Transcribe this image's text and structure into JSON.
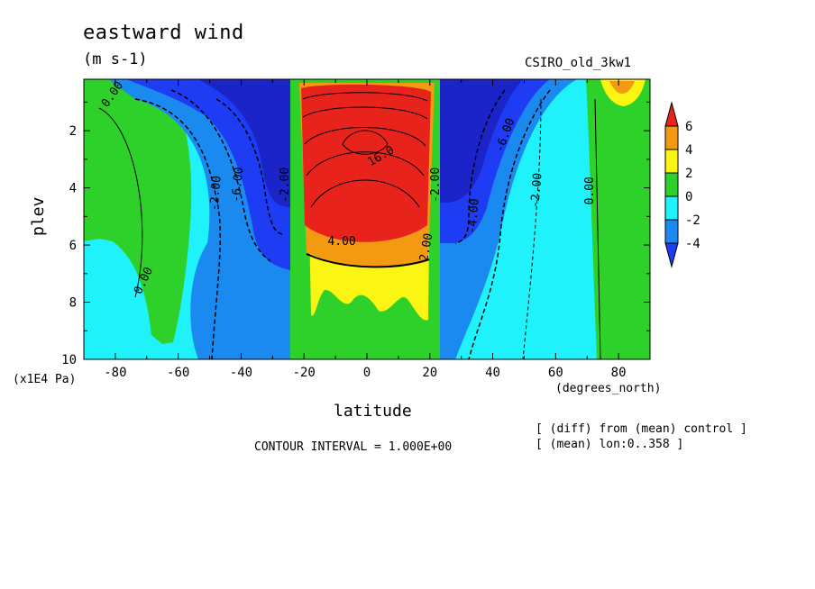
{
  "chart_data": {
    "type": "heatmap",
    "title": "eastward wind",
    "subtitle": "(m s-1)",
    "model": "CSIRO_old_3kw1",
    "xlabel": "latitude",
    "ylabel": "plev",
    "x_unit_label": "(degrees_north)",
    "y_unit_label": "(x1E4 Pa)",
    "xlim": [
      -90,
      90
    ],
    "ylim": [
      10,
      0.2
    ],
    "x_ticks": [
      -80,
      -60,
      -40,
      -20,
      0,
      20,
      40,
      60,
      80
    ],
    "y_ticks": [
      2,
      4,
      6,
      8,
      10
    ],
    "contour_interval_text": "CONTOUR INTERVAL = 1.000E+00",
    "notes": [
      "[ (diff) from (mean) control ]",
      "[ (mean) lon:0..358 ]"
    ],
    "colorbar": {
      "levels": [
        6,
        4,
        2,
        0,
        -2,
        -4
      ],
      "colors": [
        "#e8231c",
        "#f39a12",
        "#fbf514",
        "#2ed12a",
        "#1ff2fb",
        "#1b8af0",
        "#1f3cf5"
      ]
    },
    "contour_labels": [
      {
        "text": "0.00",
        "lat": -80,
        "p": 0.8,
        "angle": -55
      },
      {
        "text": "0.00",
        "lat": -70,
        "p": 7.3,
        "angle": -65
      },
      {
        "text": "-2.00",
        "lat": -47,
        "p": 4.2,
        "angle": -85
      },
      {
        "text": "-6.00",
        "lat": -40,
        "p": 3.9,
        "angle": -85
      },
      {
        "text": "-2.00",
        "lat": -25,
        "p": 3.9,
        "angle": -90
      },
      {
        "text": "-4.00",
        "lat": 35,
        "p": 5.0,
        "angle": -85
      },
      {
        "text": "-6.00",
        "lat": 45,
        "p": 2.2,
        "angle": -70
      },
      {
        "text": "-2.00",
        "lat": 55,
        "p": 4.1,
        "angle": -85
      },
      {
        "text": "0.00",
        "lat": 72,
        "p": 4.1,
        "angle": -90
      },
      {
        "text": "-2.00",
        "lat": 23,
        "p": 3.9,
        "angle": -90
      },
      {
        "text": "2.00",
        "lat": 20,
        "p": 6.1,
        "angle": -80
      },
      {
        "text": "4.00",
        "lat": -8,
        "p": 6.0,
        "angle": 0
      },
      {
        "text": "16.0",
        "lat": 5,
        "p": 3.0,
        "angle": -30
      }
    ],
    "regions": [
      {
        "label": "westerly jet core (red)",
        "lat_range": [
          -20,
          21
        ],
        "p_range": [
          0.2,
          7.5
        ],
        "max": 18
      },
      {
        "label": "southern easterly max (blue)",
        "lat_range": [
          -55,
          -20
        ],
        "p_range": [
          0.2,
          6.5
        ],
        "min": -8
      },
      {
        "label": "northern easterly max (blue)",
        "lat_range": [
          22,
          55
        ],
        "p_range": [
          0.2,
          6.5
        ],
        "min": -8
      },
      {
        "label": "southern polar westerly (green)",
        "lat_range": [
          -90,
          -58
        ],
        "p_range": [
          0.2,
          9.5
        ],
        "max": 1
      },
      {
        "label": "northern polar westerly (green)",
        "lat_range": [
          68,
          90
        ],
        "p_range": [
          0.2,
          10
        ],
        "max": 4
      }
    ]
  }
}
